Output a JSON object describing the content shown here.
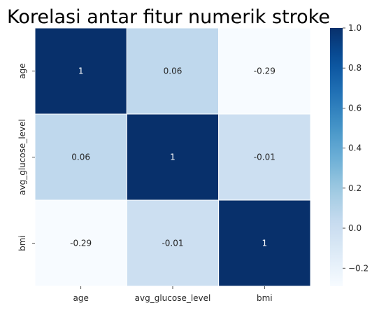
{
  "chart_data": {
    "type": "heatmap",
    "title": "Korelasi antar fitur numerik stroke",
    "x_categories": [
      "age",
      "avg_glucose_level",
      "bmi"
    ],
    "y_categories": [
      "age",
      "avg_glucose_level",
      "bmi"
    ],
    "values": [
      [
        1,
        0.06,
        -0.29
      ],
      [
        0.06,
        1,
        -0.01
      ],
      [
        -0.29,
        -0.01,
        1
      ]
    ],
    "cell_labels": [
      [
        "1",
        "0.06",
        "-0.29"
      ],
      [
        "0.06",
        "1",
        "-0.01"
      ],
      [
        "-0.29",
        "-0.01",
        "1"
      ]
    ],
    "colormap": "Blues",
    "colorbar": {
      "range": [
        -0.29,
        1.0
      ],
      "ticks": [
        1.0,
        0.8,
        0.6,
        0.4,
        0.2,
        0.0,
        -0.2
      ],
      "tick_labels": [
        "1.0",
        "0.8",
        "0.6",
        "0.4",
        "0.2",
        "0.0",
        "−0.2"
      ]
    },
    "colors": {
      "low": "#f7fbff",
      "high": "#08306b",
      "dark_text": "#262626",
      "light_text": "#ffffff",
      "cell_border": "#ffffff"
    }
  }
}
